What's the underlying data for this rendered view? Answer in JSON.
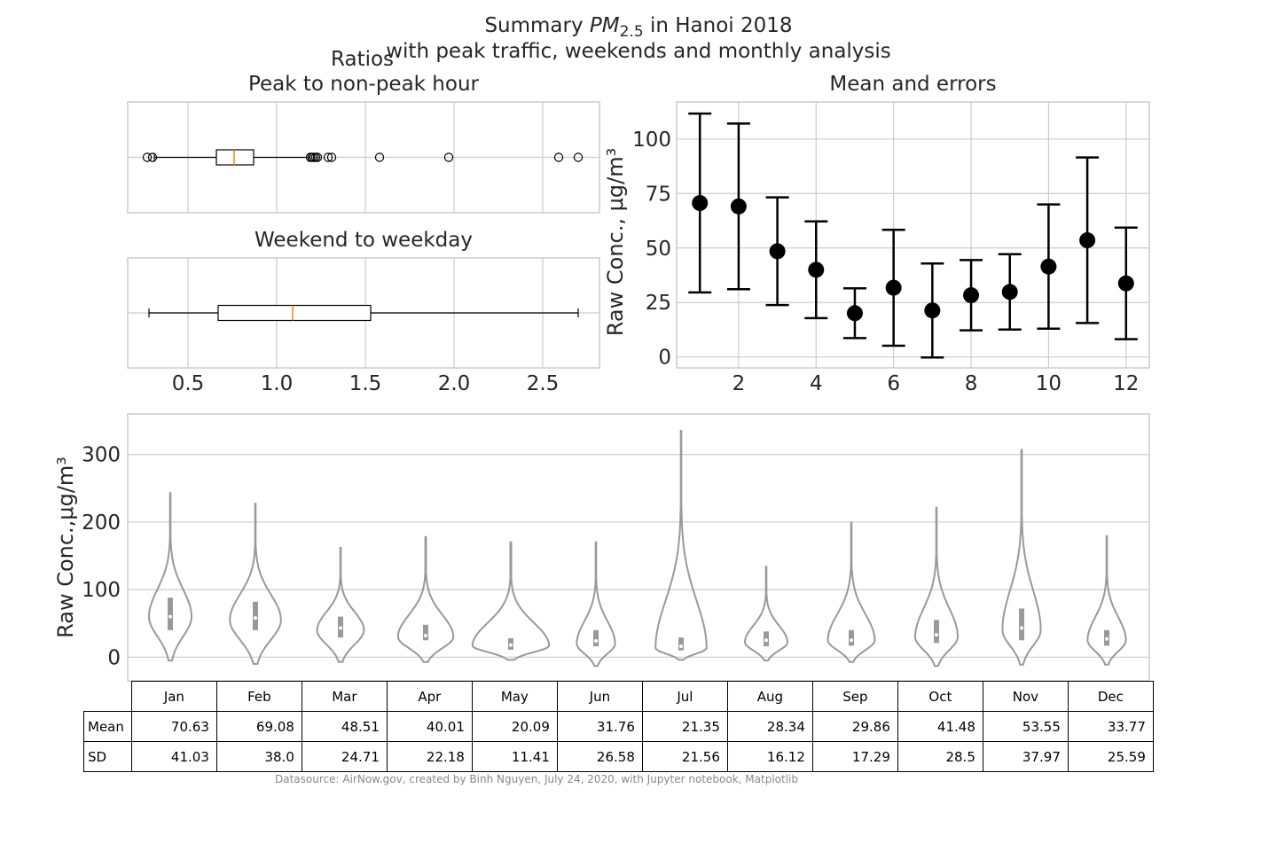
{
  "title": {
    "prefix": "Summary ",
    "pm": "PM",
    "pm_sub": "2.5",
    "suffix": " in Hanoi 2018",
    "line2": "with peak traffic, weekends and monthly analysis"
  },
  "ratios_label": "Ratios",
  "peak_panel": {
    "title": "Peak to non-peak hour",
    "box": {
      "q1": 0.66,
      "median": 0.76,
      "q3": 0.87,
      "whisker_low": 0.31,
      "whisker_high": 1.18
    },
    "outliers": [
      0.27,
      0.3,
      1.19,
      1.2,
      1.21,
      1.22,
      1.23,
      1.29,
      1.31,
      1.58,
      1.97,
      2.59,
      2.7
    ]
  },
  "weekend_panel": {
    "title": "Weekend to weekday",
    "box": {
      "q1": 0.67,
      "median": 1.09,
      "q3": 1.53,
      "whisker_low": 0.28,
      "whisker_high": 2.7
    },
    "outliers": []
  },
  "ratio_axis": {
    "xlim": [
      0.16,
      2.82
    ],
    "ticks": [
      "0.5",
      "1.0",
      "1.5",
      "2.0",
      "2.5"
    ],
    "tick_values": [
      0.5,
      1.0,
      1.5,
      2.0,
      2.5
    ]
  },
  "errorbar_panel": {
    "title": "Mean and errors",
    "ylabel": "Raw Conc., μg/m³",
    "xlim": [
      0.4,
      12.6
    ],
    "ylim": [
      -5,
      117
    ],
    "xticks": [
      2,
      4,
      6,
      8,
      10,
      12
    ],
    "yticks": [
      0,
      25,
      50,
      75,
      100
    ]
  },
  "violin_panel": {
    "ylabel": "Raw Conc.,μg/m³",
    "ylim": [
      -35,
      360
    ],
    "yticks": [
      0,
      100,
      200,
      300
    ]
  },
  "chart_data": [
    {
      "type": "box",
      "title": "Peak to non-peak hour",
      "q1": 0.66,
      "median": 0.76,
      "q3": 0.87,
      "whisker_low": 0.31,
      "whisker_high": 1.18,
      "outliers": [
        0.27,
        0.3,
        1.19,
        1.2,
        1.21,
        1.22,
        1.23,
        1.29,
        1.31,
        1.58,
        1.97,
        2.59,
        2.7
      ]
    },
    {
      "type": "box",
      "title": "Weekend to weekday",
      "q1": 0.67,
      "median": 1.09,
      "q3": 1.53,
      "whisker_low": 0.28,
      "whisker_high": 2.7
    },
    {
      "type": "scatter",
      "title": "Mean and errors",
      "ylabel": "Raw Conc., μg/m³",
      "x": [
        1,
        2,
        3,
        4,
        5,
        6,
        7,
        8,
        9,
        10,
        11,
        12
      ],
      "y": [
        70.63,
        69.08,
        48.51,
        40.01,
        20.09,
        31.76,
        21.35,
        28.34,
        29.86,
        41.48,
        53.55,
        33.77
      ],
      "error": [
        41.03,
        38.0,
        24.71,
        22.18,
        11.41,
        26.58,
        21.56,
        16.12,
        17.29,
        28.5,
        37.97,
        25.59
      ]
    },
    {
      "type": "violin",
      "ylabel": "Raw Conc.,μg/m³",
      "categories": [
        "Jan",
        "Feb",
        "Mar",
        "Apr",
        "May",
        "Jun",
        "Jul",
        "Aug",
        "Sep",
        "Oct",
        "Nov",
        "Dec"
      ],
      "min": [
        -5,
        -10,
        -7,
        -7,
        -4,
        -13,
        -4,
        -5,
        -7,
        -13,
        -11,
        -11
      ],
      "max": [
        243,
        227,
        162,
        178,
        170,
        170,
        335,
        134,
        199,
        221,
        307,
        179
      ],
      "q1": [
        40,
        40,
        29,
        25,
        11,
        16,
        10,
        16,
        17,
        21,
        25,
        17
      ],
      "median": [
        60,
        58,
        43,
        32,
        18,
        24,
        16,
        25,
        25,
        33,
        43,
        27
      ],
      "q3": [
        88,
        82,
        60,
        48,
        28,
        40,
        29,
        38,
        40,
        55,
        72,
        40
      ],
      "mode": [
        60,
        55,
        40,
        30,
        17,
        20,
        13,
        22,
        25,
        30,
        40,
        25
      ],
      "width": [
        0.5,
        0.6,
        0.55,
        0.65,
        0.9,
        0.45,
        0.6,
        0.5,
        0.55,
        0.5,
        0.45,
        0.45
      ]
    },
    {
      "type": "table",
      "columns": [
        "Jan",
        "Feb",
        "Mar",
        "Apr",
        "May",
        "Jun",
        "Jul",
        "Aug",
        "Sep",
        "Oct",
        "Nov",
        "Dec"
      ],
      "rows": [
        {
          "label": "Mean",
          "values": [
            "70.63",
            "69.08",
            "48.51",
            "40.01",
            "20.09",
            "31.76",
            "21.35",
            "28.34",
            "29.86",
            "41.48",
            "53.55",
            "33.77"
          ]
        },
        {
          "label": "SD",
          "values": [
            "41.03",
            "38.0",
            "24.71",
            "22.18",
            "11.41",
            "26.58",
            "21.56",
            "16.12",
            "17.29",
            "28.5",
            "37.97",
            "25.59"
          ]
        }
      ]
    }
  ],
  "footer": "Datasource: AirNow.gov, created by Binh Nguyen, July 24, 2020, with Jupyter notebook, Matplotlib",
  "colors": {
    "grid": "#cccccc",
    "frame": "#cccccc",
    "median": "#ff7f0e",
    "violin": "#999999",
    "points": "#000000"
  }
}
